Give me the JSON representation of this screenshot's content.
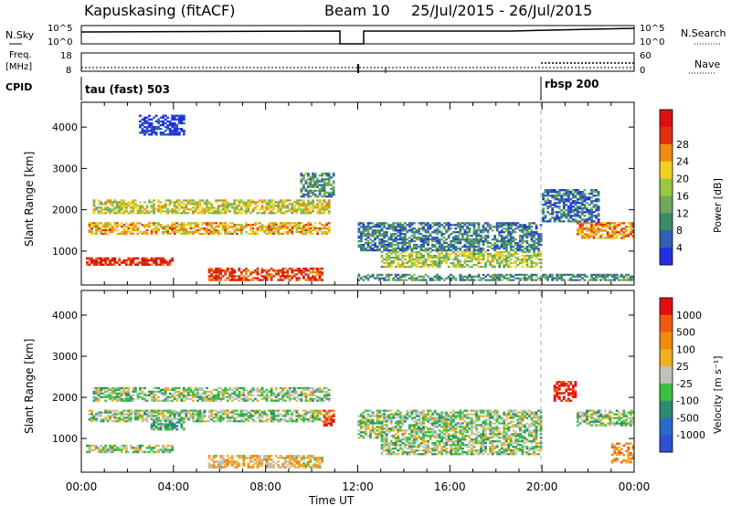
{
  "header": {
    "site": "Kapuskasing (fitACF)",
    "beam": "Beam 10",
    "dates": "25/Jul/2015 - 26/Jul/2015"
  },
  "noise_panel": {
    "left_label": "N.Sky",
    "right_label": "N.Search",
    "left_ticks": [
      "10^5",
      "10^0"
    ],
    "right_ticks": [
      "10^5",
      "10^0"
    ]
  },
  "freq_panel": {
    "left_label_1": "Freq.",
    "left_label_2": "[MHz]",
    "right_label": "Nave",
    "left_ticks": [
      "18",
      "8"
    ],
    "right_ticks": [
      "60",
      "0"
    ]
  },
  "cpid_panel": {
    "label": "CPID",
    "mode_1": "tau (fast) 503",
    "mode_2": "rbsp 200"
  },
  "colors": {
    "power": [
      "#2030e0",
      "#3060b0",
      "#3c8a6c",
      "#70a860",
      "#9ac840",
      "#f0d020",
      "#f08a10",
      "#e03010",
      "#e01010"
    ],
    "velocity": [
      "#3050d0",
      "#2a6ac8",
      "#2e8a70",
      "#3cc040",
      "#c0c0bc",
      "#f0b020",
      "#f08a10",
      "#f05a10",
      "#e01010"
    ]
  },
  "chart_data": [
    {
      "type": "heatmap",
      "parameter": "Power",
      "ylabel": "Slant Range [km]",
      "xlabel": "Time UT",
      "x_ticks": [
        "00:00",
        "04:00",
        "08:00",
        "12:00",
        "16:00",
        "20:00",
        "00:00"
      ],
      "y_ticks": [
        1000,
        2000,
        3000,
        4000
      ],
      "ylim": [
        180,
        4600
      ],
      "colorbar_title": "Power [dB]",
      "colorbar_ticks": [
        4,
        8,
        12,
        16,
        20,
        24,
        28
      ],
      "regions": [
        {
          "t0": 0.3,
          "t1": 10.8,
          "r0": 1400,
          "r1": 1700,
          "level": 0.65
        },
        {
          "t0": 0.5,
          "t1": 10.8,
          "r0": 1900,
          "r1": 2250,
          "level": 0.55
        },
        {
          "t0": 0.2,
          "t1": 4.0,
          "r0": 650,
          "r1": 850,
          "level": 0.9
        },
        {
          "t0": 5.5,
          "t1": 10.5,
          "r0": 280,
          "r1": 600,
          "level": 0.85
        },
        {
          "t0": 13.0,
          "t1": 20.0,
          "r0": 600,
          "r1": 1000,
          "level": 0.5
        },
        {
          "t0": 12.0,
          "t1": 20.0,
          "r0": 1000,
          "r1": 1700,
          "level": 0.25
        },
        {
          "t0": 12.0,
          "t1": 24.0,
          "r0": 280,
          "r1": 450,
          "level": 0.3
        },
        {
          "t0": 21.5,
          "t1": 24.0,
          "r0": 1300,
          "r1": 1700,
          "level": 0.7
        },
        {
          "t0": 20.0,
          "t1": 22.5,
          "r0": 1700,
          "r1": 2500,
          "level": 0.2
        },
        {
          "t0": 2.5,
          "t1": 4.5,
          "r0": 3800,
          "r1": 4300,
          "level": 0.05
        },
        {
          "t0": 9.5,
          "t1": 11.0,
          "r0": 2300,
          "r1": 2900,
          "level": 0.3
        }
      ]
    },
    {
      "type": "heatmap",
      "parameter": "Velocity",
      "ylabel": "Slant Range [km]",
      "xlabel": "Time UT",
      "x_ticks": [
        "00:00",
        "04:00",
        "08:00",
        "12:00",
        "16:00",
        "20:00",
        "00:00"
      ],
      "y_ticks": [
        1000,
        2000,
        3000,
        4000
      ],
      "ylim": [
        180,
        4600
      ],
      "colorbar_title": "Velocity [m s⁻¹]",
      "colorbar_ticks": [
        1000,
        500,
        100,
        25,
        -25,
        -100,
        -500,
        -1000
      ],
      "regions": [
        {
          "t0": 0.3,
          "t1": 10.8,
          "r0": 1400,
          "r1": 1700,
          "level": 0.45
        },
        {
          "t0": 0.5,
          "t1": 10.8,
          "r0": 1900,
          "r1": 2250,
          "level": 0.45
        },
        {
          "t0": 0.2,
          "t1": 4.0,
          "r0": 650,
          "r1": 850,
          "level": 0.45
        },
        {
          "t0": 3.0,
          "t1": 4.5,
          "r0": 1200,
          "r1": 1500,
          "level": 0.35
        },
        {
          "t0": 5.5,
          "t1": 10.5,
          "r0": 280,
          "r1": 600,
          "level": 0.6
        },
        {
          "t0": 13.0,
          "t1": 20.0,
          "r0": 600,
          "r1": 1000,
          "level": 0.45
        },
        {
          "t0": 12.0,
          "t1": 20.0,
          "r0": 1000,
          "r1": 1700,
          "level": 0.45
        },
        {
          "t0": 21.5,
          "t1": 24.0,
          "r0": 1300,
          "r1": 1700,
          "level": 0.45
        },
        {
          "t0": 20.5,
          "t1": 21.5,
          "r0": 1900,
          "r1": 2400,
          "level": 0.95
        },
        {
          "t0": 23.0,
          "t1": 24.0,
          "r0": 400,
          "r1": 900,
          "level": 0.7
        },
        {
          "t0": 10.5,
          "t1": 11.0,
          "r0": 1300,
          "r1": 1700,
          "level": 0.9
        }
      ]
    }
  ]
}
